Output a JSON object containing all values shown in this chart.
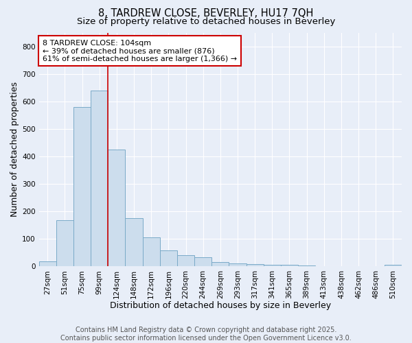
{
  "title_line1": "8, TARDREW CLOSE, BEVERLEY, HU17 7QH",
  "title_line2": "Size of property relative to detached houses in Beverley",
  "xlabel": "Distribution of detached houses by size in Beverley",
  "ylabel": "Number of detached properties",
  "categories": [
    "27sqm",
    "51sqm",
    "75sqm",
    "99sqm",
    "124sqm",
    "148sqm",
    "172sqm",
    "196sqm",
    "220sqm",
    "244sqm",
    "269sqm",
    "293sqm",
    "317sqm",
    "341sqm",
    "365sqm",
    "389sqm",
    "413sqm",
    "438sqm",
    "462sqm",
    "486sqm",
    "510sqm"
  ],
  "values": [
    18,
    168,
    580,
    640,
    425,
    175,
    105,
    57,
    42,
    33,
    15,
    10,
    9,
    7,
    6,
    3,
    2,
    1,
    0,
    0,
    6
  ],
  "bar_color": "#ccdded",
  "bar_edge_color": "#7aaac8",
  "annotation_text_line1": "8 TARDREW CLOSE: 104sqm",
  "annotation_text_line2": "← 39% of detached houses are smaller (876)",
  "annotation_text_line3": "61% of semi-detached houses are larger (1,366) →",
  "annotation_box_color": "#ffffff",
  "annotation_box_edge": "#cc0000",
  "red_line_index": 3,
  "ylim": [
    0,
    850
  ],
  "yticks": [
    0,
    100,
    200,
    300,
    400,
    500,
    600,
    700,
    800
  ],
  "footer_line1": "Contains HM Land Registry data © Crown copyright and database right 2025.",
  "footer_line2": "Contains public sector information licensed under the Open Government Licence v3.0.",
  "background_color": "#e8eef8",
  "plot_bg_color": "#e8eef8",
  "grid_color": "#ffffff",
  "title_fontsize": 10.5,
  "subtitle_fontsize": 9.5,
  "axis_label_fontsize": 9,
  "tick_fontsize": 7.5,
  "annotation_fontsize": 8,
  "footer_fontsize": 7
}
